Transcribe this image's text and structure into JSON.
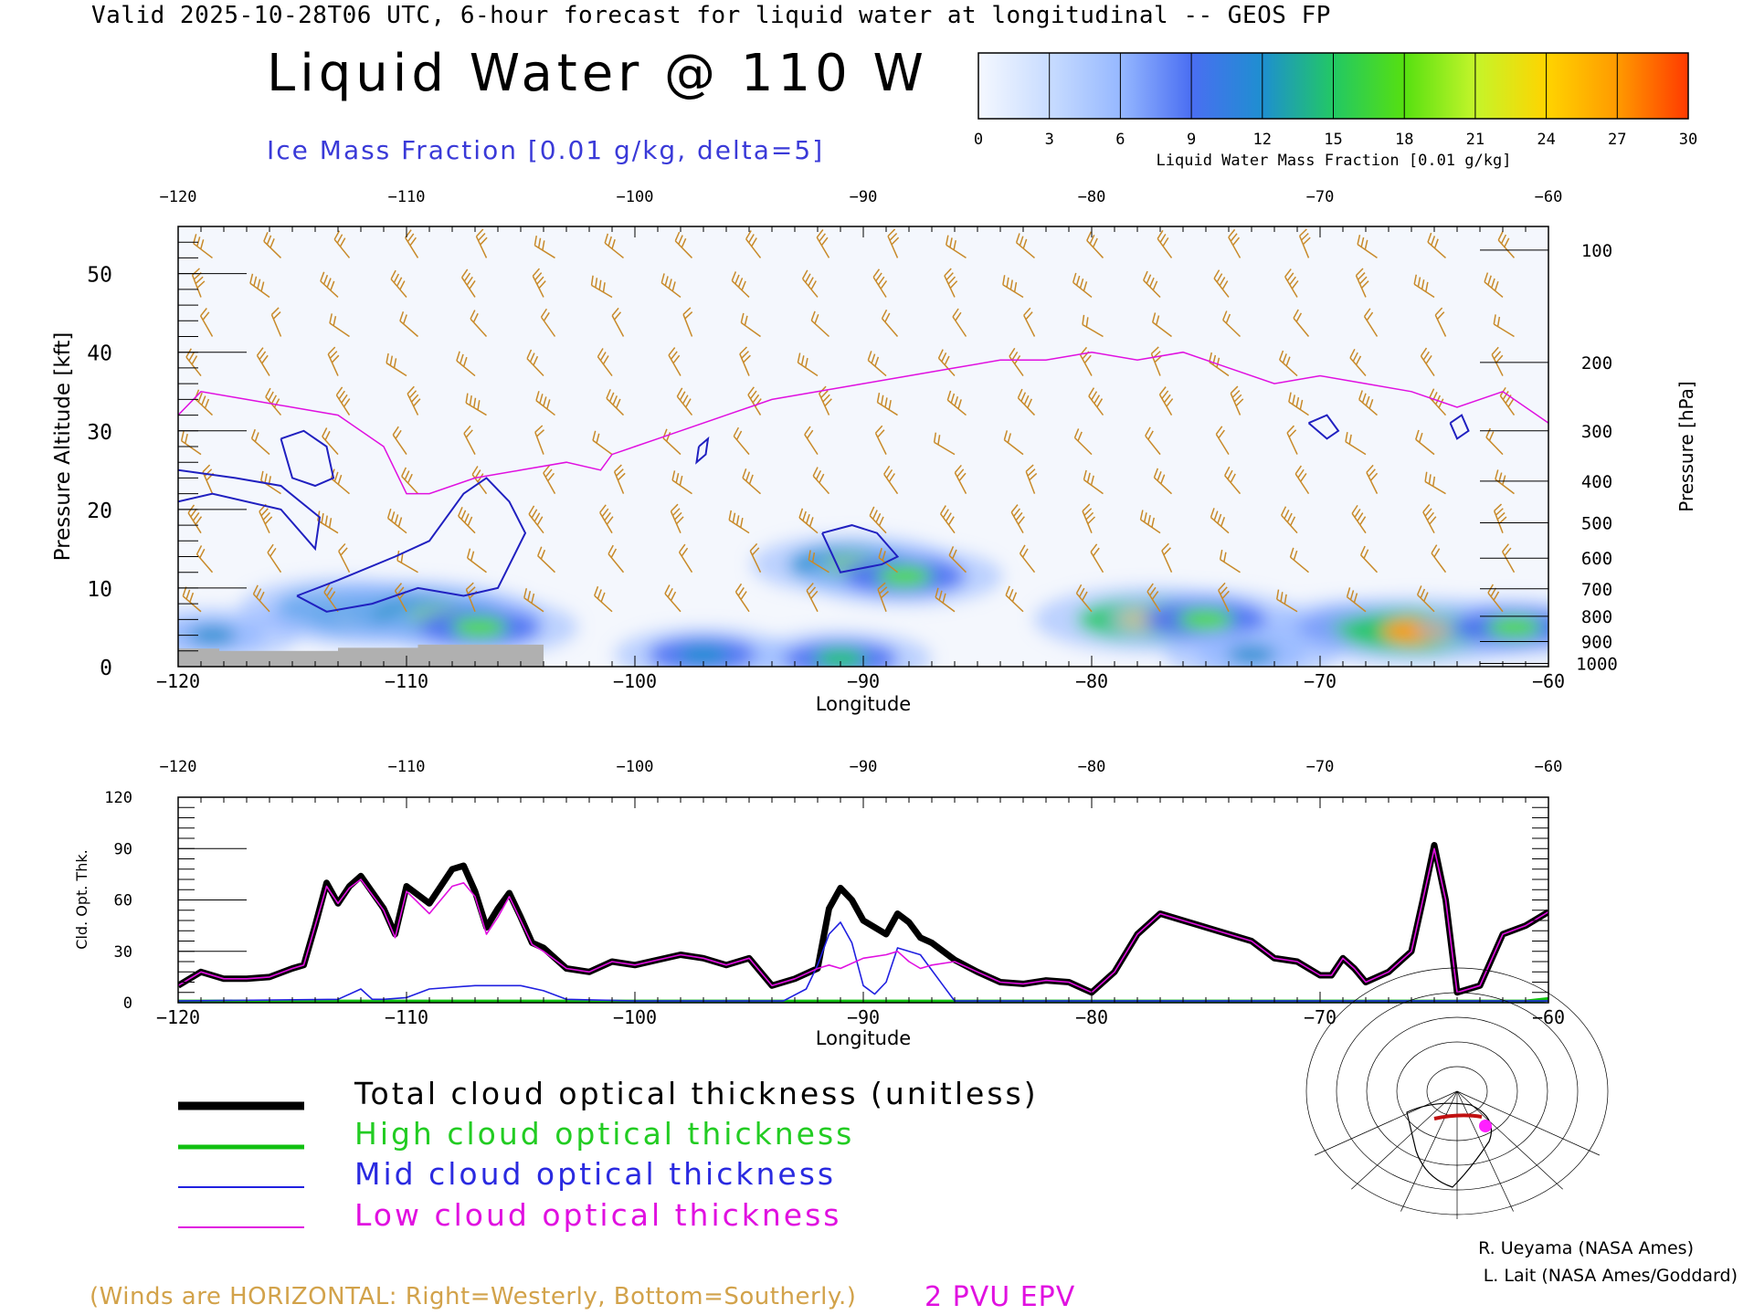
{
  "header": {
    "line": "Valid 2025-10-28T06 UTC, 6-hour forecast for liquid water at longitudinal -- GEOS FP",
    "title": "Liquid Water @ 110 W",
    "subtitle": "Ice Mass Fraction [0.01 g/kg, delta=5]"
  },
  "colorbar": {
    "ticks": [
      "0",
      "3",
      "6",
      "9",
      "12",
      "15",
      "18",
      "21",
      "24",
      "27",
      "30"
    ],
    "label": "Liquid Water Mass Fraction [0.01 g/kg]",
    "colors": [
      "#f5f8ff",
      "#c8dcff",
      "#96b8ff",
      "#4a6ef2",
      "#1e8fd0",
      "#22c864",
      "#56e010",
      "#c4f52a",
      "#ffd400",
      "#ff9a00",
      "#ff3a00"
    ]
  },
  "colors": {
    "ice_contour": "#2020c0",
    "epv": "#e010e0",
    "wind_barb": "#c88a2a",
    "total": "#000000",
    "high": "#10c010",
    "mid": "#2020e0",
    "low": "#e010e0",
    "terrain": "#b0b0b0"
  },
  "chart_data": [
    {
      "type": "heatmap",
      "title": "Liquid Water @ 110 W",
      "xlabel": "Longitude",
      "ylabel_left": "Pressure Altitude [kft]",
      "ylabel_right": "Pressure [hPa]",
      "xlim": [
        -120,
        -60
      ],
      "ylim": [
        0,
        56
      ],
      "x_ticks": [
        "-120",
        "-110",
        "-100",
        "-90",
        "-80",
        "-70",
        "-60"
      ],
      "x_tick_labels": [
        "−120",
        "−110",
        "−100",
        "−90",
        "−80",
        "−70",
        "−60"
      ],
      "y_ticks_left": [
        "0",
        "10",
        "20",
        "30",
        "40",
        "50"
      ],
      "y_ticks_right": [
        {
          "label": "100",
          "kft": 53
        },
        {
          "label": "200",
          "kft": 38.7
        },
        {
          "label": "300",
          "kft": 30
        },
        {
          "label": "400",
          "kft": 23.6
        },
        {
          "label": "500",
          "kft": 18.3
        },
        {
          "label": "600",
          "kft": 13.8
        },
        {
          "label": "700",
          "kft": 9.9
        },
        {
          "label": "800",
          "kft": 6.4
        },
        {
          "label": "900",
          "kft": 3.2
        },
        {
          "label": "1000",
          "kft": 0.4
        }
      ],
      "liquid_water_blobs": [
        {
          "lon": -112.9,
          "kft": 7.5,
          "peak": 18
        },
        {
          "lon": -111.7,
          "kft": 6.5,
          "peak": 19
        },
        {
          "lon": -110.0,
          "kft": 7.0,
          "peak": 20
        },
        {
          "lon": -108.6,
          "kft": 6.5,
          "peak": 19
        },
        {
          "lon": -106.8,
          "kft": 5.0,
          "peak": 17
        },
        {
          "lon": -118.5,
          "kft": 4.0,
          "peak": 12
        },
        {
          "lon": -90.5,
          "kft": 13.0,
          "peak": 18
        },
        {
          "lon": -88.2,
          "kft": 11.5,
          "peak": 17
        },
        {
          "lon": -77.5,
          "kft": 6.0,
          "peak": 24
        },
        {
          "lon": -75.0,
          "kft": 6.0,
          "peak": 17
        },
        {
          "lon": -68.5,
          "kft": 5.0,
          "peak": 14
        },
        {
          "lon": -65.8,
          "kft": 4.5,
          "peak": 27
        },
        {
          "lon": -61.5,
          "kft": 5.0,
          "peak": 17
        },
        {
          "lon": -97.0,
          "kft": 1.5,
          "peak": 13
        },
        {
          "lon": -91.0,
          "kft": 1.0,
          "peak": 14
        },
        {
          "lon": -73.0,
          "kft": 1.5,
          "peak": 12
        }
      ],
      "epv_2pvu_line": {
        "lon": [
          -120,
          -119,
          -117,
          -115,
          -113,
          -111,
          -110,
          -109,
          -107,
          -105,
          -103,
          -101.5,
          -101,
          -100,
          -99,
          -98,
          -96,
          -94,
          -92,
          -90,
          -88,
          -86,
          -84,
          -82,
          -80,
          -78,
          -76,
          -74,
          -72,
          -70,
          -68,
          -66,
          -64,
          -62,
          -60
        ],
        "kft": [
          32,
          35,
          34,
          33,
          32,
          28,
          22,
          22,
          24,
          25,
          26,
          25,
          27,
          28,
          29,
          30,
          32,
          34,
          35,
          36,
          37,
          38,
          39,
          39,
          40,
          39,
          40,
          38,
          36,
          37,
          36,
          35,
          33,
          35,
          31
        ]
      },
      "terrain_kft": [
        {
          "lon": [
            -120,
            -118.2
          ],
          "kft": 2.3
        },
        {
          "lon": [
            -118.2,
            -113
          ],
          "kft": 2.0
        },
        {
          "lon": [
            -113,
            -109.5
          ],
          "kft": 2.4
        },
        {
          "lon": [
            -109.5,
            -104
          ],
          "kft": 2.8
        }
      ],
      "ice_contours": [
        {
          "lon": [
            -115.5,
            -114.5,
            -113.5,
            -113.2,
            -114.0,
            -115.0,
            -115.5
          ],
          "kft": [
            29,
            30,
            28,
            24,
            23,
            24,
            29
          ]
        },
        {
          "lon": [
            -120,
            -117.5,
            -115.5,
            -113.8,
            -114,
            -115.5,
            -118.5,
            -120
          ],
          "kft": [
            25,
            24,
            23,
            19,
            15,
            20,
            22,
            21
          ]
        },
        {
          "lon": [
            -114.8,
            -113,
            -110.5,
            -109,
            -107.5,
            -106.5,
            -105.5,
            -104.8,
            -106,
            -107.5,
            -109.5,
            -111.5,
            -113.5,
            -114.8
          ],
          "kft": [
            9,
            11,
            14,
            16,
            22,
            24,
            21,
            17,
            10,
            9,
            10,
            8,
            7,
            9
          ]
        },
        {
          "lon": [
            -91.8,
            -90.5,
            -89.4,
            -88.5,
            -89.2,
            -91.0,
            -91.8
          ],
          "kft": [
            17,
            18,
            17,
            14,
            13,
            12,
            17
          ]
        },
        {
          "lon": [
            -97.2,
            -96.8,
            -96.9,
            -97.3,
            -97.2
          ],
          "kft": [
            28,
            29,
            27,
            26,
            28
          ]
        },
        {
          "lon": [
            -70.5,
            -69.7,
            -69.2,
            -69.7,
            -70.5
          ],
          "kft": [
            31,
            32,
            30,
            29,
            31
          ]
        },
        {
          "lon": [
            -64.3,
            -63.8,
            -63.5,
            -64.0,
            -64.3
          ],
          "kft": [
            31,
            32,
            30,
            29,
            31
          ]
        }
      ],
      "wind_barbs": {
        "note": "Winds are HORIZONTAL: Right=Westerly, Bottom=Southerly.",
        "lon_step": 3,
        "kft_levels": [
          5,
          10,
          15,
          20,
          25,
          30,
          35,
          40,
          45,
          50
        ]
      }
    },
    {
      "type": "line",
      "xlabel": "Longitude",
      "ylabel": "Cld. Opt. Thk.",
      "xlim": [
        -120,
        -60
      ],
      "ylim": [
        0,
        120
      ],
      "x_ticks": [
        "-120",
        "-110",
        "-100",
        "-90",
        "-80",
        "-70",
        "-60"
      ],
      "x_tick_labels": [
        "−120",
        "−110",
        "−100",
        "−90",
        "−80",
        "−70",
        "−60"
      ],
      "y_ticks": [
        "0",
        "30",
        "60",
        "90",
        "120"
      ],
      "series": [
        {
          "name": "Total cloud optical thickness (unitless)",
          "key": "total",
          "x": [
            -120,
            -119,
            -118,
            -117,
            -116,
            -115,
            -114.5,
            -114,
            -113.5,
            -113,
            -112.5,
            -112,
            -111,
            -110.5,
            -110,
            -109,
            -108,
            -107.5,
            -107,
            -106.5,
            -106,
            -105.5,
            -105,
            -104.5,
            -104,
            -103,
            -102,
            -101,
            -100,
            -99,
            -98,
            -97,
            -96,
            -95,
            -94,
            -93,
            -92,
            -91.5,
            -91,
            -90.5,
            -90,
            -89,
            -88.5,
            -88,
            -87.5,
            -87,
            -86,
            -85,
            -84,
            -83,
            -82,
            -81,
            -80,
            -79,
            -78,
            -77,
            -76,
            -75,
            -74,
            -73,
            -72,
            -71,
            -70,
            -69.5,
            -69,
            -68.5,
            -68,
            -67,
            -66,
            -65.5,
            -65,
            -64.5,
            -64,
            -63,
            -62,
            -61,
            -60
          ],
          "y": [
            10,
            18,
            14,
            14,
            15,
            20,
            22,
            45,
            70,
            58,
            68,
            74,
            55,
            40,
            68,
            58,
            78,
            80,
            65,
            44,
            55,
            64,
            50,
            35,
            32,
            20,
            18,
            24,
            22,
            25,
            28,
            26,
            22,
            26,
            10,
            14,
            20,
            55,
            67,
            60,
            48,
            40,
            52,
            47,
            38,
            35,
            25,
            18,
            12,
            11,
            13,
            12,
            6,
            18,
            40,
            52,
            48,
            44,
            40,
            36,
            26,
            24,
            16,
            16,
            26,
            20,
            12,
            18,
            30,
            60,
            92,
            60,
            6,
            10,
            40,
            45,
            53
          ]
        },
        {
          "name": "High cloud optical thickness",
          "key": "high",
          "x": [
            -120,
            -100,
            -80,
            -61,
            -60
          ],
          "y": [
            0.5,
            0.5,
            0.5,
            0.5,
            2
          ]
        },
        {
          "name": "Mid cloud optical thickness",
          "key": "mid",
          "x": [
            -120,
            -113,
            -112,
            -111.5,
            -111,
            -110,
            -109,
            -107,
            -105,
            -104,
            -103,
            -100,
            -95,
            -93.5,
            -92.5,
            -92,
            -91.5,
            -91,
            -90.5,
            -90,
            -89.5,
            -89,
            -88.5,
            -87.5,
            -86.5,
            -86,
            -60
          ],
          "y": [
            1,
            2,
            8,
            2,
            2,
            3,
            8,
            10,
            10,
            7,
            2,
            1,
            1,
            1,
            8,
            22,
            40,
            47,
            35,
            10,
            5,
            12,
            32,
            28,
            10,
            1,
            1
          ]
        },
        {
          "name": "Low cloud optical thickness",
          "key": "low",
          "x": [
            -120,
            -119,
            -118,
            -117,
            -116,
            -115,
            -114.5,
            -114,
            -113.5,
            -113,
            -112.5,
            -112,
            -111,
            -110.5,
            -110,
            -109,
            -108,
            -107.5,
            -107,
            -106.5,
            -106,
            -105.5,
            -105,
            -104.5,
            -104,
            -103,
            -102,
            -101,
            -100,
            -99,
            -98,
            -97,
            -96,
            -95,
            -94,
            -93,
            -92,
            -91.5,
            -91,
            -90,
            -89,
            -88.5,
            -88,
            -87.5,
            -87,
            -86,
            -85,
            -84,
            -83,
            -82,
            -81,
            -80,
            -79,
            -78,
            -77,
            -76,
            -75,
            -74,
            -73,
            -72,
            -71,
            -70,
            -69.5,
            -69,
            -68.5,
            -68,
            -67,
            -66,
            -65.5,
            -65,
            -64.5,
            -64,
            -63,
            -62,
            -61,
            -60
          ],
          "y": [
            10,
            18,
            14,
            14,
            15,
            20,
            22,
            45,
            68,
            58,
            67,
            72,
            54,
            38,
            65,
            52,
            68,
            70,
            62,
            40,
            50,
            62,
            48,
            34,
            30,
            20,
            18,
            24,
            22,
            25,
            28,
            26,
            22,
            26,
            10,
            14,
            20,
            22,
            20,
            26,
            28,
            30,
            24,
            20,
            22,
            24,
            18,
            12,
            11,
            13,
            12,
            6,
            18,
            40,
            52,
            48,
            44,
            40,
            36,
            26,
            24,
            16,
            16,
            26,
            20,
            12,
            18,
            30,
            60,
            90,
            60,
            6,
            10,
            40,
            45,
            53
          ]
        }
      ]
    }
  ],
  "legend": {
    "total": "Total cloud optical thickness (unitless)",
    "high": "High cloud optical thickness",
    "mid": "Mid cloud optical thickness",
    "low": "Low cloud optical thickness"
  },
  "notes": {
    "winds": "(Winds are HORIZONTAL: Right=Westerly, Bottom=Southerly.)",
    "pvu": "2 PVU EPV"
  },
  "credits": {
    "line1": "R. Ueyama (NASA Ames)",
    "line2": "L. Lait (NASA Ames/Goddard)"
  }
}
